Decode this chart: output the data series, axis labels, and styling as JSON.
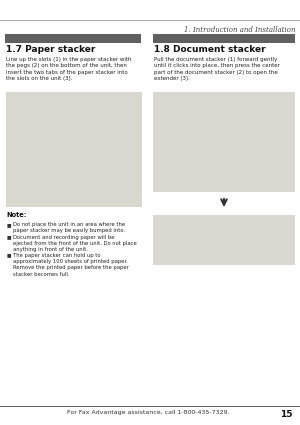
{
  "bg_color": "#ffffff",
  "header_text": "1. Introduction and Installation",
  "section1_title": "1.7 Paper stacker",
  "section1_body": "Line up the slots (1) in the paper stacker with\nthe pegs (2) on the bottom of the unit, then\ninsert the two tabs of the paper stacker into\nthe slots on the unit (3).",
  "section2_title": "1.8 Document stacker",
  "section2_body": "Pull the document stacker (1) forward gently\nuntil it clicks into place, then press the center\npart of the document stacker (2) to open the\nextender (3).",
  "note_title": "Note:",
  "note_bullets": [
    "Do not place the unit in an area where the\npaper stacker may be easily bumped into.",
    "Document and recording paper will be\nejected from the front of the unit. Do not place\nanything in front of the unit.",
    "The paper stacker can hold up to\napproximately 100 sheets of printed paper.\nRemove the printed paper before the paper\nstacker becomes full."
  ],
  "footer_text": "For Fax Advantage assistance, call 1-800-435-7329.",
  "footer_page": "15",
  "section_header_bg": "#606060",
  "body_text_color": "#222222",
  "image_area_color": "#d8d8d0"
}
